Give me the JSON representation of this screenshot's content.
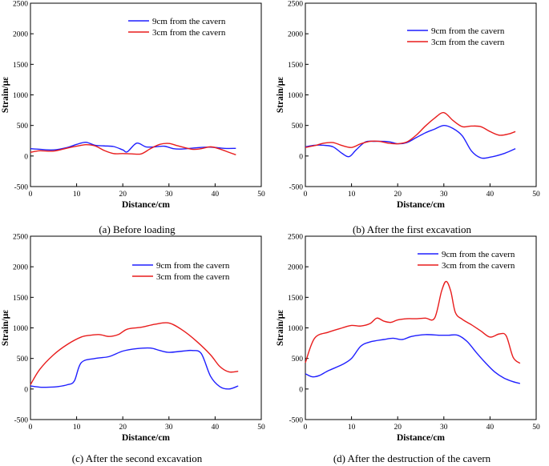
{
  "chart_data": [
    {
      "type": "line",
      "caption": "(a) Before loading",
      "xlabel": "Distance/cm",
      "ylabel": "Strain/με",
      "xlim": [
        0,
        50
      ],
      "ylim": [
        -500,
        2500
      ],
      "xticks": [
        "0",
        "10",
        "20",
        "30",
        "40",
        "50"
      ],
      "yticks": [
        "-500",
        "0",
        "500",
        "1000",
        "1500",
        "2000",
        "2500"
      ],
      "grid": false,
      "legend_position": "top-right",
      "series": [
        {
          "name": "9cm from the cavern",
          "color": "#1f1fff",
          "x": [
            0,
            2,
            5,
            8,
            10,
            12,
            14,
            16,
            18,
            20,
            21,
            23,
            25,
            27,
            29,
            31,
            33,
            36,
            39,
            42,
            44.5
          ],
          "y": [
            120,
            110,
            100,
            140,
            190,
            225,
            175,
            165,
            155,
            100,
            70,
            210,
            150,
            150,
            160,
            120,
            115,
            135,
            145,
            125,
            125
          ]
        },
        {
          "name": "3cm from the cavern",
          "color": "#e81c1c",
          "x": [
            0,
            2,
            5,
            8,
            10,
            12,
            14,
            16,
            18,
            20,
            22,
            24,
            26,
            28,
            30,
            32,
            35,
            37,
            39,
            41,
            43,
            44.5
          ],
          "y": [
            60,
            85,
            80,
            130,
            160,
            185,
            165,
            90,
            40,
            40,
            35,
            35,
            120,
            190,
            205,
            165,
            110,
            120,
            150,
            115,
            60,
            20
          ]
        }
      ]
    },
    {
      "type": "line",
      "caption": "(b) After the first excavation",
      "xlabel": "Distance/cm",
      "ylabel": "Strain/με",
      "xlim": [
        0,
        50
      ],
      "ylim": [
        -500,
        2500
      ],
      "xticks": [
        "0",
        "10",
        "20",
        "30",
        "40",
        "50"
      ],
      "yticks": [
        "-500",
        "0",
        "500",
        "1000",
        "1500",
        "2000",
        "2500"
      ],
      "grid": false,
      "legend_position": "top-right",
      "series": [
        {
          "name": "9cm from the cavern",
          "color": "#1f1fff",
          "x": [
            0,
            2,
            4,
            6,
            8,
            9.5,
            11,
            13,
            15,
            18,
            20,
            22,
            24,
            26,
            28,
            30,
            32,
            34,
            36,
            38,
            40,
            43,
            45.5
          ],
          "y": [
            150,
            175,
            175,
            150,
            40,
            -10,
            100,
            230,
            240,
            235,
            200,
            220,
            300,
            380,
            440,
            500,
            450,
            330,
            80,
            -30,
            -20,
            40,
            120
          ]
        },
        {
          "name": "3cm from the cavern",
          "color": "#e81c1c",
          "x": [
            0,
            2,
            4,
            6,
            8,
            10,
            12,
            14,
            16,
            18,
            20,
            22,
            24,
            26,
            28,
            30,
            32,
            34,
            36,
            38,
            40,
            42,
            44,
            45.5
          ],
          "y": [
            140,
            170,
            210,
            220,
            170,
            140,
            200,
            240,
            240,
            210,
            200,
            230,
            340,
            490,
            620,
            710,
            580,
            480,
            490,
            480,
            400,
            340,
            360,
            400
          ]
        }
      ]
    },
    {
      "type": "line",
      "caption": "(c) After the second excavation",
      "xlabel": "Distance/cm",
      "ylabel": "Strain/με",
      "xlim": [
        0,
        50
      ],
      "ylim": [
        -500,
        2500
      ],
      "xticks": [
        "0",
        "10",
        "20",
        "30",
        "40",
        "50"
      ],
      "yticks": [
        "-500",
        "0",
        "500",
        "1000",
        "1500",
        "2000",
        "2500"
      ],
      "grid": false,
      "legend_position": "top-right",
      "series": [
        {
          "name": "9cm from the cavern",
          "color": "#1f1fff",
          "x": [
            0,
            2,
            4,
            6,
            8,
            9.5,
            11,
            14,
            17,
            20,
            23,
            26,
            28,
            30,
            33,
            35,
            37,
            39,
            41,
            43,
            45
          ],
          "y": [
            50,
            30,
            30,
            40,
            70,
            130,
            430,
            500,
            530,
            620,
            660,
            670,
            630,
            600,
            620,
            630,
            580,
            210,
            40,
            0,
            50
          ]
        },
        {
          "name": "3cm from the cavern",
          "color": "#e81c1c",
          "x": [
            0,
            2,
            5,
            8,
            11,
            13,
            15,
            17,
            19,
            21,
            24,
            27,
            30,
            33,
            36,
            39,
            41,
            43,
            45
          ],
          "y": [
            70,
            320,
            560,
            730,
            850,
            880,
            890,
            860,
            890,
            980,
            1010,
            1060,
            1080,
            960,
            780,
            560,
            370,
            280,
            290
          ]
        }
      ]
    },
    {
      "type": "line",
      "caption": "(d) After the destruction of the cavern",
      "xlabel": "Distance/cm",
      "ylabel": "Strain/με",
      "xlim": [
        0,
        50
      ],
      "ylim": [
        -500,
        2500
      ],
      "xticks": [
        "0",
        "10",
        "20",
        "30",
        "40",
        "50"
      ],
      "yticks": [
        "-500",
        "0",
        "500",
        "1000",
        "1500",
        "2000",
        "2500"
      ],
      "grid": false,
      "legend_position": "top-right",
      "series": [
        {
          "name": "9cm from the cavern",
          "color": "#1f1fff",
          "x": [
            0,
            1.5,
            3,
            5,
            8,
            10,
            12,
            14,
            17,
            19,
            21,
            23,
            26,
            29,
            31,
            33,
            35,
            37,
            39,
            41,
            43,
            45,
            46.5
          ],
          "y": [
            250,
            200,
            220,
            300,
            400,
            500,
            700,
            770,
            810,
            830,
            810,
            860,
            890,
            880,
            880,
            880,
            780,
            600,
            430,
            280,
            180,
            120,
            90
          ]
        },
        {
          "name": "3cm from the cavern",
          "color": "#e81c1c",
          "x": [
            0,
            2,
            5,
            8,
            10,
            12,
            14,
            15.5,
            17,
            18.5,
            20,
            22,
            24,
            26,
            28,
            29.5,
            30.5,
            31.5,
            32.5,
            34,
            36,
            38,
            40,
            42,
            43.5,
            45,
            46.5
          ],
          "y": [
            430,
            830,
            930,
            1000,
            1040,
            1030,
            1070,
            1160,
            1110,
            1090,
            1130,
            1150,
            1150,
            1160,
            1160,
            1600,
            1760,
            1600,
            1250,
            1140,
            1050,
            950,
            850,
            900,
            870,
            520,
            420
          ]
        }
      ]
    }
  ]
}
